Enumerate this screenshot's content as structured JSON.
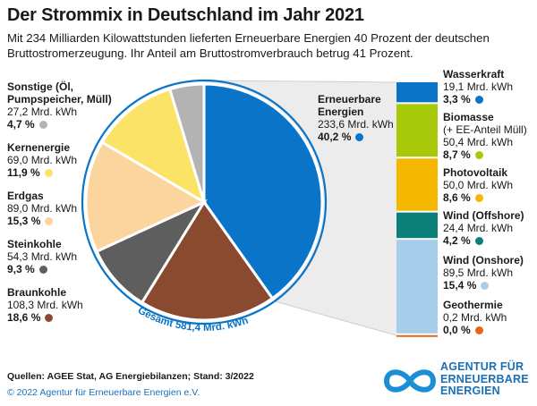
{
  "header": {
    "title": "Der Strommix in Deutschland im Jahr 2021",
    "subtitle": "Mit 234 Milliarden Kilowattstunden lieferten Erneuerbare Energien 40 Prozent der deutschen Bruttostromerzeugung. Ihr Anteil am Bruttostromverbrauch betrug 41 Prozent."
  },
  "colors": {
    "renewable": "#0a74c8",
    "wasserkraft": "#0a74c8",
    "biomasse": "#a8c80a",
    "photovoltaik": "#f5b800",
    "wind_offshore": "#0c8078",
    "wind_onshore": "#a6cdea",
    "geothermie": "#e8641a",
    "sonstige": "#b3b3b3",
    "kernenergie": "#fbe367",
    "erdgas": "#fbd49e",
    "steinkohle": "#5e5e5e",
    "braunkohle": "#8a4a30",
    "total_label": "#0a74c8"
  },
  "chart_data": [
    {
      "type": "pie",
      "title": "Der Strommix in Deutschland im Jahr 2021",
      "total_label": "Gesamt 581,4 Mrd. kWh",
      "unit": "Mrd. kWh",
      "slices": [
        {
          "key": "erneuerbare",
          "name": "Erneuerbare Energien",
          "value": 233.6,
          "value_label": "233,6 Mrd. kWh",
          "percent_label": "40,2 %"
        },
        {
          "key": "braunkohle",
          "name": "Braunkohle",
          "value": 108.3,
          "value_label": "108,3 Mrd. kWh",
          "percent_label": "18,6 %"
        },
        {
          "key": "steinkohle",
          "name": "Steinkohle",
          "value": 54.3,
          "value_label": "54,3 Mrd. kWh",
          "percent_label": "9,3 %"
        },
        {
          "key": "erdgas",
          "name": "Erdgas",
          "value": 89.0,
          "value_label": "89,0 Mrd. kWh",
          "percent_label": "15,3 %"
        },
        {
          "key": "kernenergie",
          "name": "Kernenergie",
          "value": 69.0,
          "value_label": "69,0 Mrd. kWh",
          "percent_label": "11,9 %"
        },
        {
          "key": "sonstige",
          "name": "Sonstige (Öl, Pumpspeicher, Müll)",
          "value": 27.2,
          "value_label": "27,2 Mrd. kWh",
          "percent_label": "4,7 %"
        }
      ]
    },
    {
      "type": "bar",
      "title": "Erneuerbare Energien",
      "stacked": true,
      "unit": "Mrd. kWh",
      "segments": [
        {
          "key": "wasserkraft",
          "name": "Wasserkraft",
          "value": 19.1,
          "value_label": "19,1 Mrd. kWh",
          "percent_label": "3,3 %"
        },
        {
          "key": "biomasse",
          "name": "Biomasse",
          "sub": "(+ EE-Anteil Müll)",
          "value": 50.4,
          "value_label": "50,4 Mrd. kWh",
          "percent_label": "8,7 %"
        },
        {
          "key": "photovoltaik",
          "name": "Photovoltaik",
          "value": 50.0,
          "value_label": "50,0 Mrd. kWh",
          "percent_label": "8,6 %"
        },
        {
          "key": "wind_offshore",
          "name": "Wind (Offshore)",
          "value": 24.4,
          "value_label": "24,4 Mrd. kWh",
          "percent_label": "4,2 %"
        },
        {
          "key": "wind_onshore",
          "name": "Wind (Onshore)",
          "value": 89.5,
          "value_label": "89,5 Mrd. kWh",
          "percent_label": "15,4 %"
        },
        {
          "key": "geothermie",
          "name": "Geothermie",
          "value": 0.2,
          "value_label": "0,2 Mrd. kWh",
          "percent_label": "0,0 %"
        }
      ]
    }
  ],
  "footer": {
    "sources": "Quellen: AGEE Stat, AG Energiebilanzen; Stand: 3/2022",
    "copyright": "© 2022 Agentur für Erneuerbare Energien e.V.",
    "logo_lines": [
      "AGENTUR FÜR",
      "ERNEUERBARE",
      "ENERGIEN"
    ]
  }
}
